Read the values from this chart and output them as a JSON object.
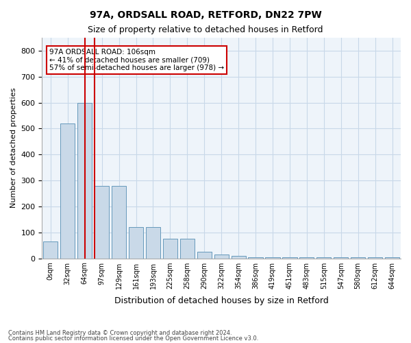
{
  "title1": "97A, ORDSALL ROAD, RETFORD, DN22 7PW",
  "title2": "Size of property relative to detached houses in Retford",
  "xlabel": "Distribution of detached houses by size in Retford",
  "ylabel": "Number of detached properties",
  "footnote1": "Contains HM Land Registry data © Crown copyright and database right 2024.",
  "footnote2": "Contains public sector information licensed under the Open Government Licence v3.0.",
  "annotation_line1": "97A ORDSALL ROAD: 106sqm",
  "annotation_line2": "← 41% of detached houses are smaller (709)",
  "annotation_line3": "57% of semi-detached houses are larger (978) →",
  "bar_values": [
    65,
    520,
    600,
    280,
    280,
    120,
    120,
    75,
    75,
    25,
    15,
    10,
    5,
    5,
    5,
    5,
    5,
    5,
    5,
    5,
    5
  ],
  "bin_labels": [
    "0sqm",
    "32sqm",
    "64sqm",
    "97sqm",
    "129sqm",
    "161sqm",
    "193sqm",
    "225sqm",
    "258sqm",
    "290sqm",
    "322sqm",
    "354sqm",
    "386sqm",
    "419sqm",
    "451sqm",
    "483sqm",
    "515sqm",
    "547sqm",
    "580sqm",
    "612sqm",
    "644sqm"
  ],
  "bar_color": "#c9d9e8",
  "bar_edge_color": "#6699bb",
  "bar_highlight_index": 2,
  "bar_highlight_color": "#7fb3d3",
  "vline_x": 2,
  "vline_color": "#cc0000",
  "annotation_box_color": "#cc0000",
  "grid_color": "#c8d8e8",
  "background_color": "#eef4fa",
  "ylim": [
    0,
    850
  ],
  "yticks": [
    0,
    100,
    200,
    300,
    400,
    500,
    600,
    700,
    800
  ]
}
